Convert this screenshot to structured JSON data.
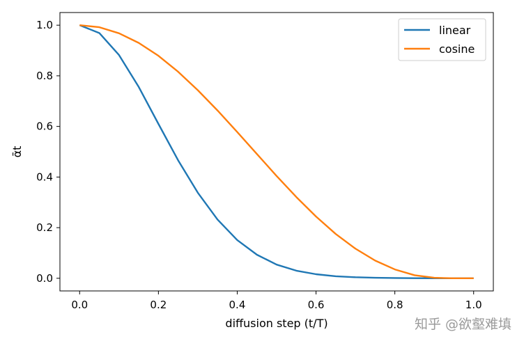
{
  "chart_data": {
    "type": "line",
    "xlabel": "diffusion step (t/T)",
    "ylabel": "ᾱt",
    "xlim": [
      -0.05,
      1.05
    ],
    "ylim": [
      -0.05,
      1.05
    ],
    "xticks": [
      0.0,
      0.2,
      0.4,
      0.6,
      0.8,
      1.0
    ],
    "yticks": [
      0.0,
      0.2,
      0.4,
      0.6,
      0.8,
      1.0
    ],
    "xtick_labels": [
      "0.0",
      "0.2",
      "0.4",
      "0.6",
      "0.8",
      "1.0"
    ],
    "ytick_labels": [
      "0.0",
      "0.2",
      "0.4",
      "0.6",
      "0.8",
      "1.0"
    ],
    "grid": false,
    "legend_position": "top-right",
    "x": [
      0.0,
      0.05,
      0.1,
      0.15,
      0.2,
      0.25,
      0.3,
      0.35,
      0.4,
      0.45,
      0.5,
      0.55,
      0.6,
      0.65,
      0.7,
      0.75,
      0.8,
      0.85,
      0.9,
      0.95,
      1.0
    ],
    "series": [
      {
        "name": "linear",
        "color": "#1f77b4",
        "values": [
          1.0,
          0.969,
          0.882,
          0.756,
          0.61,
          0.466,
          0.338,
          0.232,
          0.151,
          0.093,
          0.054,
          0.03,
          0.016,
          0.008,
          0.004,
          0.002,
          0.001,
          0.0005,
          0.0002,
          0.0001,
          0.0
        ]
      },
      {
        "name": "cosine",
        "color": "#ff7f0e",
        "values": [
          1.0,
          0.992,
          0.968,
          0.93,
          0.879,
          0.816,
          0.743,
          0.663,
          0.578,
          0.491,
          0.404,
          0.321,
          0.244,
          0.175,
          0.117,
          0.07,
          0.035,
          0.012,
          0.002,
          0.0,
          0.0
        ]
      }
    ]
  },
  "watermark": "知乎 @欲壑难填"
}
